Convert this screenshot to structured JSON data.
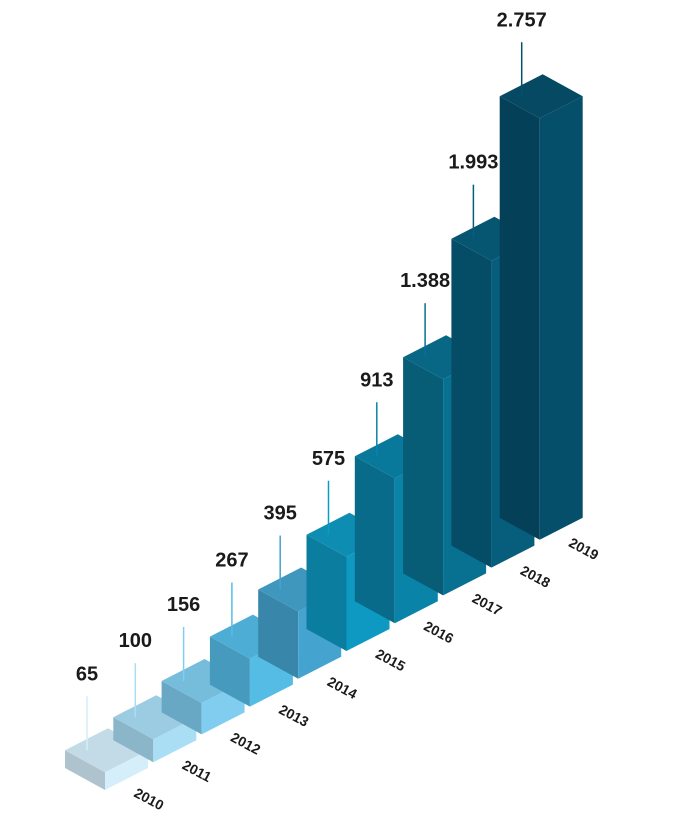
{
  "chart_data": {
    "type": "bar3d",
    "categories": [
      "2010",
      "2011",
      "2012",
      "2013",
      "2014",
      "2015",
      "2016",
      "2017",
      "2018",
      "2019"
    ],
    "values": [
      65,
      100,
      156,
      267,
      395,
      575,
      913,
      1388,
      1993,
      2757
    ],
    "value_labels": [
      "65",
      "100",
      "156",
      "267",
      "395",
      "575",
      "913",
      "1.388",
      "1.993",
      "2.757"
    ],
    "colors": [
      "#d4eefa",
      "#aadef5",
      "#80cdef",
      "#55bce6",
      "#44a4cf",
      "#0e99c2",
      "#0a83a8",
      "#087090",
      "#065e7c",
      "#054f6b"
    ]
  }
}
